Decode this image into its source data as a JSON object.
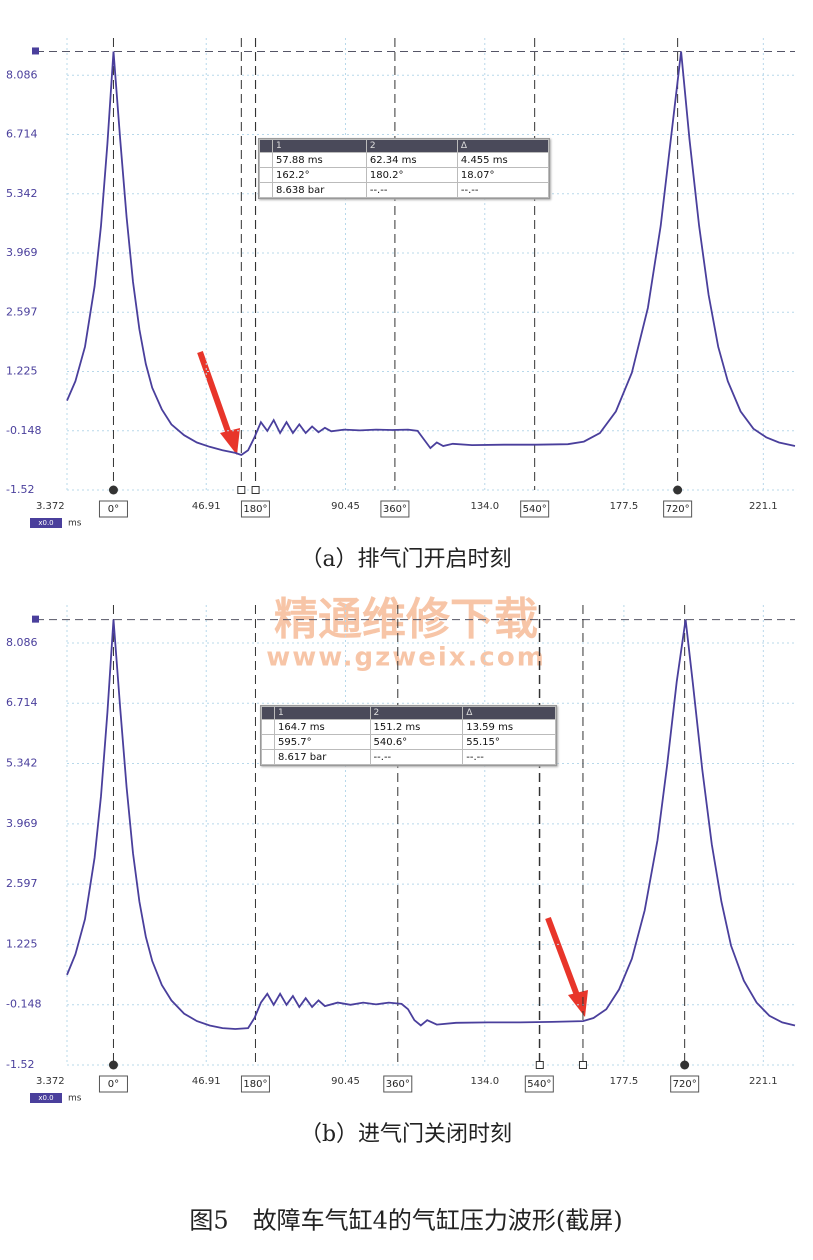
{
  "chart_data": [
    {
      "type": "line",
      "caption": "（a）排气门开启时刻",
      "zoom_label": "x0.0",
      "x_unit": "ms",
      "xlim": [
        3.372,
        231
      ],
      "ylim": [
        -1.52,
        8.95
      ],
      "xticks": [
        3.372,
        46.91,
        90.45,
        {
          "value": 134,
          "label": "134.0"
        },
        177.5,
        221.1
      ],
      "yticks": [
        -1.52,
        -0.148,
        1.225,
        2.597,
        3.969,
        5.342,
        6.714,
        8.086
      ],
      "grid": true,
      "x": [
        3.372,
        6,
        9,
        12,
        14,
        16,
        17.9,
        20,
        22,
        24,
        26,
        28,
        30,
        33,
        36,
        40,
        44,
        48,
        52,
        56,
        57.88,
        60,
        62,
        64,
        66,
        68,
        70,
        72,
        74,
        76,
        78,
        80,
        82,
        84,
        86,
        90,
        95,
        100,
        105,
        110,
        113,
        115,
        117,
        119,
        121,
        124,
        130,
        140,
        150,
        160,
        165,
        170,
        175,
        180,
        185,
        189,
        192,
        195.4,
        198,
        201,
        204,
        207,
        210,
        214,
        218,
        222,
        226,
        231
      ],
      "series": [
        {
          "color": "#4a3f9c",
          "values": [
            0.55,
            1.0,
            1.8,
            3.2,
            4.6,
            6.5,
            8.638,
            6.6,
            4.8,
            3.3,
            2.2,
            1.4,
            0.85,
            0.35,
            0.0,
            -0.25,
            -0.42,
            -0.52,
            -0.6,
            -0.66,
            -0.71,
            -0.6,
            -0.3,
            0.05,
            -0.15,
            0.1,
            -0.2,
            0.05,
            -0.2,
            0.0,
            -0.2,
            -0.05,
            -0.18,
            -0.08,
            -0.16,
            -0.12,
            -0.14,
            -0.12,
            -0.13,
            -0.12,
            -0.15,
            -0.35,
            -0.55,
            -0.42,
            -0.5,
            -0.45,
            -0.48,
            -0.47,
            -0.47,
            -0.46,
            -0.4,
            -0.2,
            0.3,
            1.2,
            2.7,
            4.6,
            6.5,
            8.638,
            6.6,
            4.6,
            3.0,
            1.8,
            1.0,
            0.3,
            -0.1,
            -0.3,
            -0.42,
            -0.5
          ]
        }
      ],
      "markers": [
        {
          "x": 17.9,
          "label": "0°"
        },
        {
          "x": 62.3,
          "label": "180°"
        },
        {
          "x": 105.9,
          "label": "360°"
        },
        {
          "x": 149.6,
          "label": "540°"
        },
        {
          "x": 194.3,
          "label": "720°"
        }
      ],
      "cursor_x": [
        57.88,
        62.34
      ],
      "cursor_level": 8.638,
      "cursor_table": {
        "header": [
          "1",
          "2",
          "Δ"
        ],
        "rows": [
          [
            "57.88 ms",
            "62.34 ms",
            "4.455 ms"
          ],
          [
            "162.2°",
            "180.2°",
            "18.07°"
          ],
          [
            "8.638 bar",
            "--.--",
            "--.--"
          ]
        ]
      }
    },
    {
      "type": "line",
      "caption": "（b）进气门关闭时刻",
      "zoom_label": "x0.0",
      "x_unit": "ms",
      "xlim": [
        3.372,
        231
      ],
      "ylim": [
        -1.52,
        8.95
      ],
      "xticks": [
        3.372,
        46.91,
        90.45,
        {
          "value": 134,
          "label": "134.0"
        },
        177.5,
        221.1
      ],
      "yticks": [
        -1.52,
        -0.148,
        1.225,
        2.597,
        3.969,
        5.342,
        6.714,
        8.086
      ],
      "grid": true,
      "x": [
        3.372,
        6,
        9,
        12,
        14,
        16,
        17.9,
        20,
        22,
        24,
        26,
        28,
        30,
        33,
        36,
        40,
        44,
        48,
        52,
        56,
        60,
        62,
        64,
        66,
        68,
        70,
        72,
        74,
        76,
        78,
        80,
        82,
        84,
        88,
        92,
        96,
        100,
        104,
        108,
        110,
        112,
        114,
        116,
        119,
        125,
        135,
        145,
        155,
        164.7,
        168,
        172,
        176,
        180,
        184,
        188,
        191,
        194,
        196.8,
        199,
        202,
        205,
        208,
        211,
        215,
        219,
        223,
        227,
        231
      ],
      "series": [
        {
          "color": "#4a3f9c",
          "values": [
            0.53,
            1.0,
            1.8,
            3.2,
            4.6,
            6.5,
            8.617,
            6.6,
            4.8,
            3.3,
            2.2,
            1.4,
            0.85,
            0.3,
            -0.05,
            -0.35,
            -0.52,
            -0.62,
            -0.68,
            -0.7,
            -0.68,
            -0.45,
            -0.1,
            0.1,
            -0.15,
            0.1,
            -0.15,
            0.05,
            -0.2,
            0.0,
            -0.2,
            -0.05,
            -0.18,
            -0.1,
            -0.15,
            -0.1,
            -0.14,
            -0.1,
            -0.13,
            -0.25,
            -0.5,
            -0.62,
            -0.5,
            -0.6,
            -0.56,
            -0.55,
            -0.55,
            -0.54,
            -0.52,
            -0.45,
            -0.25,
            0.2,
            0.9,
            2.0,
            3.6,
            5.3,
            7.2,
            8.617,
            7.2,
            5.2,
            3.5,
            2.2,
            1.2,
            0.4,
            -0.1,
            -0.4,
            -0.55,
            -0.62
          ]
        }
      ],
      "markers": [
        {
          "x": 17.9,
          "label": "0°"
        },
        {
          "x": 62.3,
          "label": "180°"
        },
        {
          "x": 106.8,
          "label": "360°"
        },
        {
          "x": 151.05,
          "label": "540°"
        },
        {
          "x": 196.5,
          "label": "720°"
        }
      ],
      "cursor_x": [
        164.7,
        151.2
      ],
      "cursor_level": 8.617,
      "cursor_table": {
        "header": [
          "1",
          "2",
          "Δ"
        ],
        "rows": [
          [
            "164.7 ms",
            "151.2 ms",
            "13.59 ms"
          ],
          [
            "595.7°",
            "540.6°",
            "55.15°"
          ],
          [
            "8.617 bar",
            "--.--",
            "--.--"
          ]
        ]
      }
    }
  ],
  "watermark": {
    "title": "精通维修下载",
    "url": "www.gzweix.com"
  },
  "figure_caption": "图5　故障车气缸4的气缸压力波形(截屏)"
}
